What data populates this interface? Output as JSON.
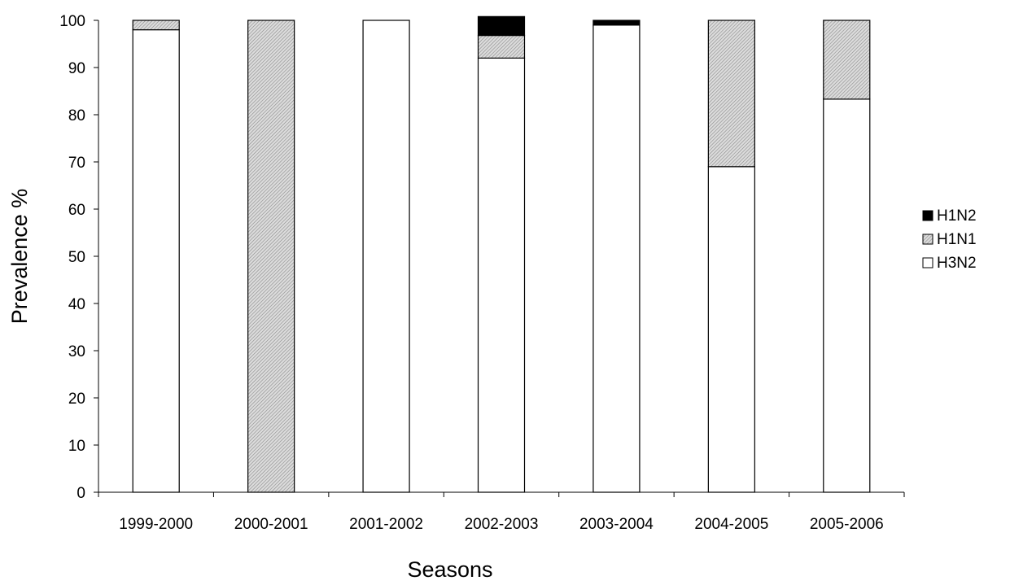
{
  "chart_data": {
    "type": "bar",
    "stacked": true,
    "title": "",
    "xlabel": "Seasons",
    "ylabel": "Prevalence %",
    "ylim": [
      0,
      100
    ],
    "yticks": [
      0,
      10,
      20,
      30,
      40,
      50,
      60,
      70,
      80,
      90,
      100
    ],
    "grid": false,
    "legend_position": "right",
    "categories": [
      "1999-2000",
      "2000-2001",
      "2001-2002",
      "2002-2003",
      "2003-2004",
      "2004-2005",
      "2005-2006"
    ],
    "series": [
      {
        "name": "H3N2",
        "fill": "white",
        "color": "#ffffff",
        "values": [
          98,
          0,
          100,
          92,
          99,
          69,
          83.3
        ]
      },
      {
        "name": "H1N1",
        "fill": "hatched",
        "color": "#c8c8c8",
        "values": [
          2,
          100,
          0,
          4.8,
          0,
          31,
          16.7
        ]
      },
      {
        "name": "H1N2",
        "fill": "solid",
        "color": "#000000",
        "values": [
          0,
          0,
          0,
          4,
          1,
          0,
          0
        ]
      }
    ],
    "legend_order": [
      "H1N2",
      "H1N1",
      "H3N2"
    ]
  }
}
